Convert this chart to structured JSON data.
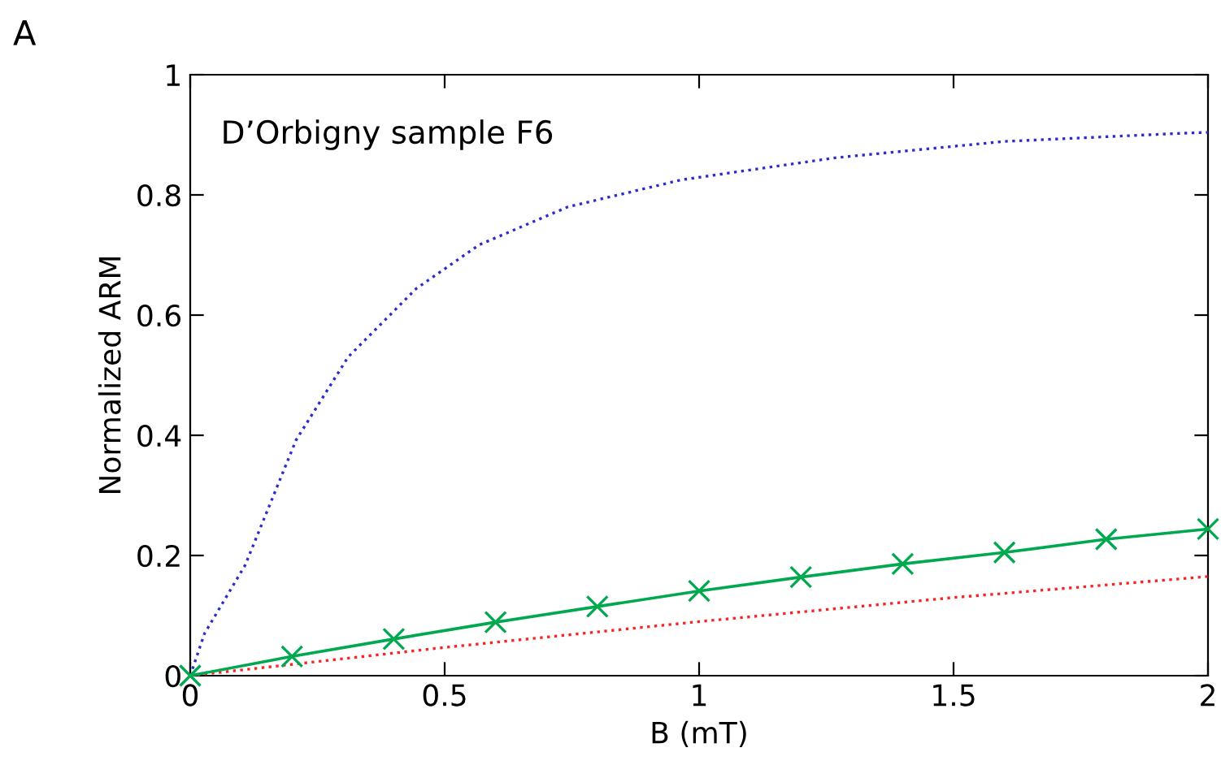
{
  "chart_data": {
    "type": "line",
    "xlabel": "B (mT)",
    "ylabel": "Normalized ARM",
    "annotations": [
      "A",
      "D’Orbigny sample F6"
    ],
    "series": [
      {
        "color": "#2b2bd0",
        "line_style": "dotted",
        "marker": "none",
        "x": [
          0,
          0.028,
          0.108,
          0.208,
          0.31,
          0.444,
          0.568,
          0.742,
          0.965,
          1.27,
          1.6,
          1.96,
          2
        ],
        "values": [
          0,
          0.07,
          0.184,
          0.392,
          0.53,
          0.644,
          0.717,
          0.78,
          0.825,
          0.862,
          0.889,
          0.903,
          0.904
        ]
      },
      {
        "color": "#ff2020",
        "line_style": "dotted",
        "marker": "none",
        "x": [
          0,
          0.5,
          1,
          1.5,
          2
        ],
        "values": [
          0,
          0.047,
          0.09,
          0.13,
          0.165
        ]
      },
      {
        "color": "#00a84f",
        "line_style": "solid",
        "marker": "cross",
        "x": [
          0,
          0.2,
          0.4,
          0.6,
          0.8,
          1,
          1.2,
          1.4,
          1.6,
          1.8,
          2
        ],
        "values": [
          0,
          0.032,
          0.061,
          0.089,
          0.115,
          0.141,
          0.164,
          0.186,
          0.205,
          0.227,
          0.244
        ]
      }
    ],
    "xlim": [
      0,
      2
    ],
    "ylim": [
      0,
      1
    ],
    "xticks": [
      0,
      0.5,
      1,
      1.5,
      2
    ],
    "yticks": [
      0,
      0.2,
      0.4,
      0.6,
      0.8,
      1
    ],
    "grid": false,
    "legend": false
  }
}
